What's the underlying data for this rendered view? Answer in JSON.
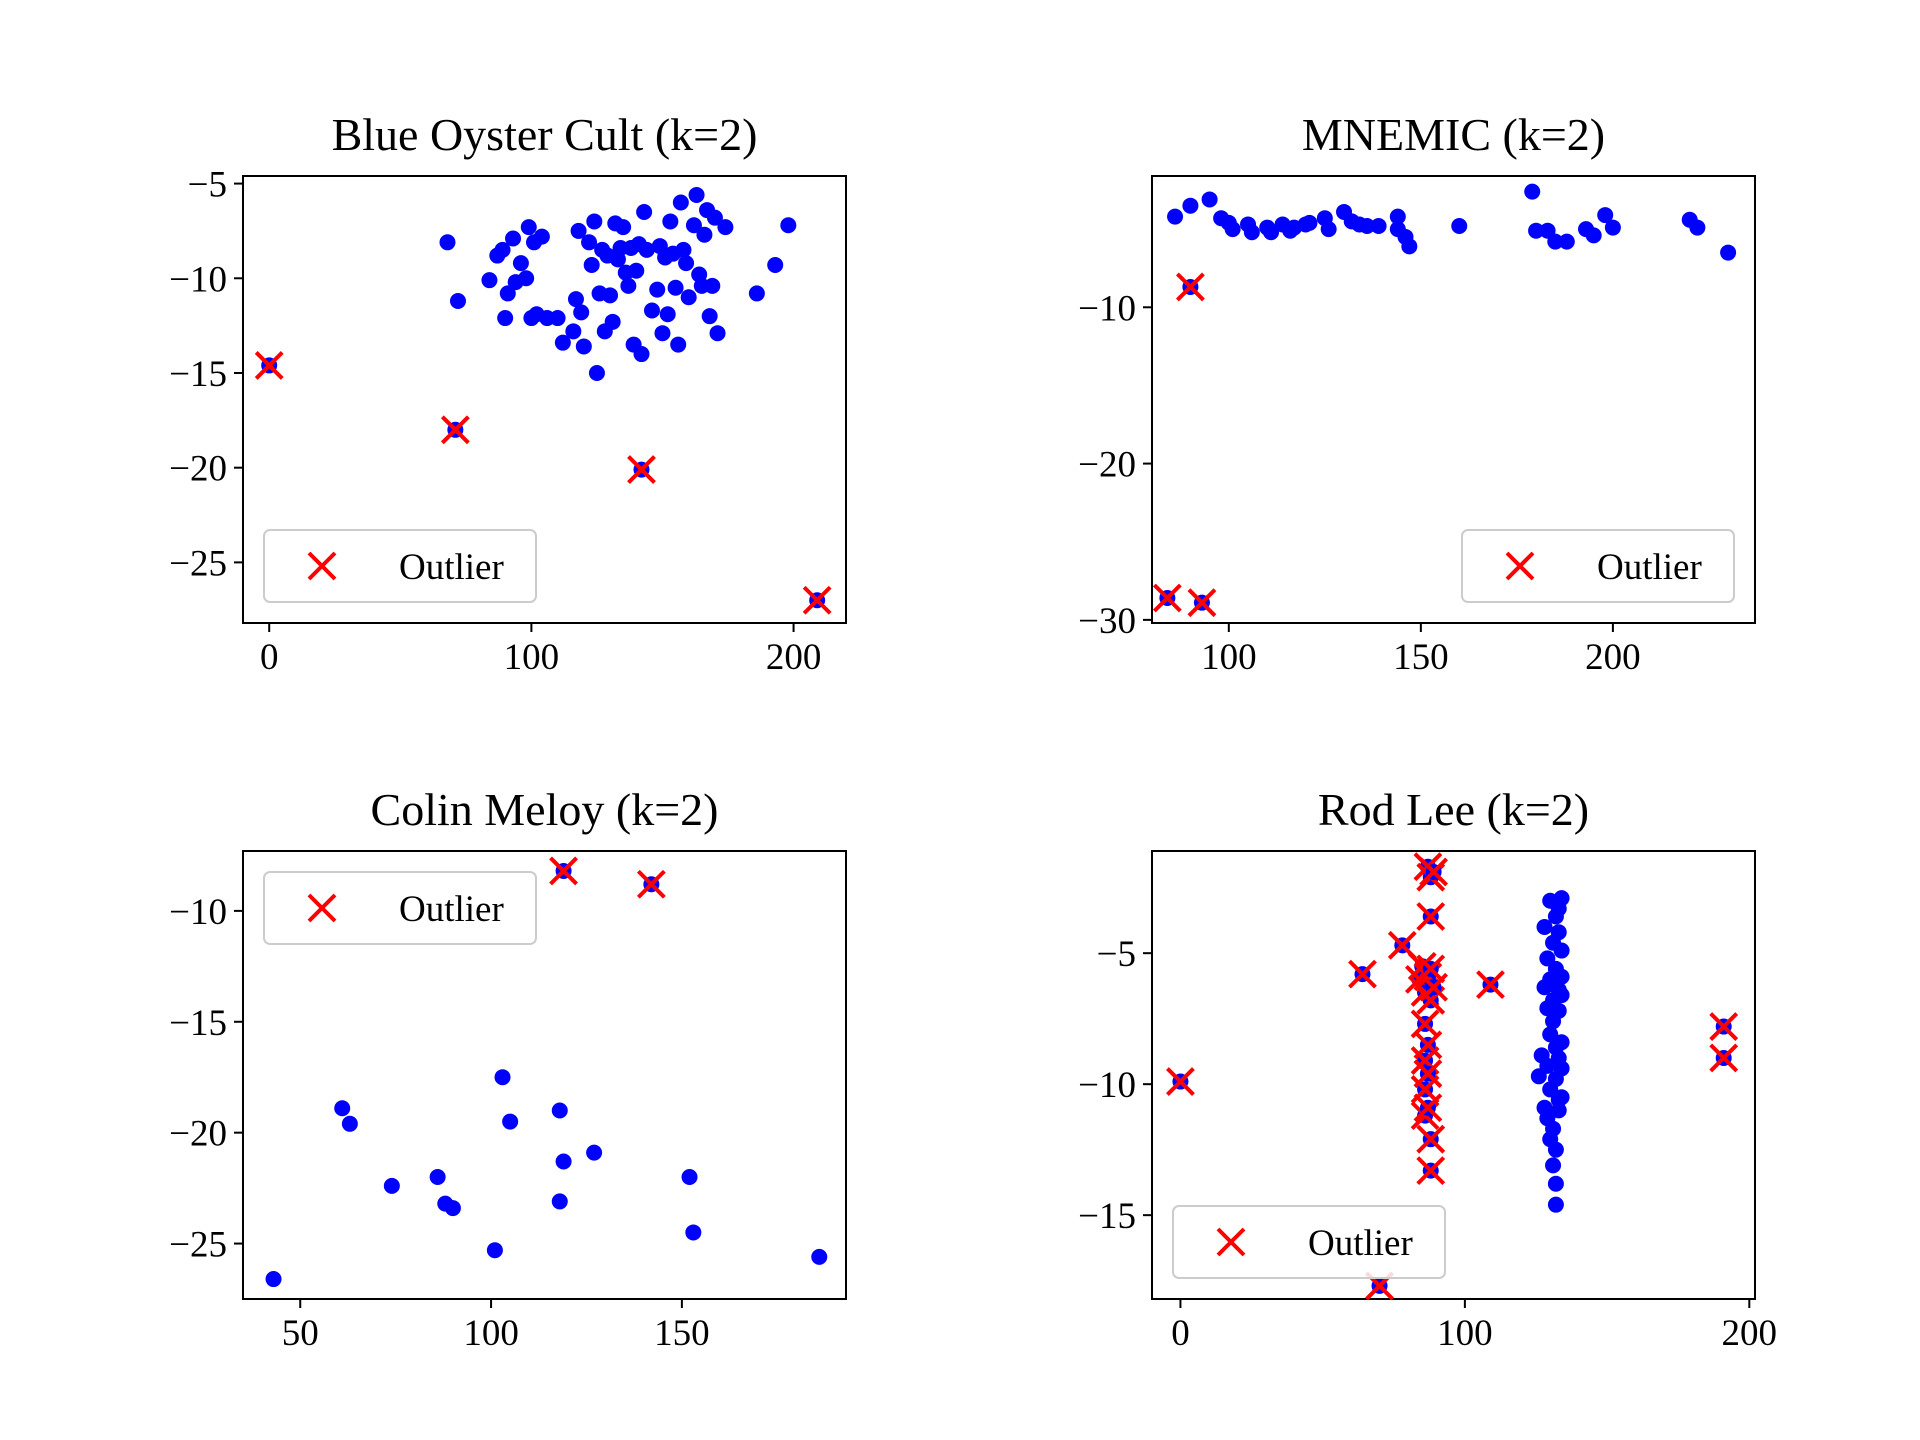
{
  "colors": {
    "inlier": "#0000ff",
    "outlier": "#ff0000",
    "axes": "#000000",
    "legend_border": "#cccccc"
  },
  "chart_data": [
    {
      "type": "scatter",
      "title": "Blue Oyster Cult (k=2)",
      "xlim": [
        -10,
        220
      ],
      "ylim": [
        -28.2,
        -4.6
      ],
      "xticks": [
        0,
        100,
        200
      ],
      "yticks": [
        -5,
        -10,
        -15,
        -20,
        -25
      ],
      "legend": {
        "label": "Outlier",
        "position": "lower-left"
      },
      "inliers": [
        [
          68,
          -8.1
        ],
        [
          72,
          -11.2
        ],
        [
          84,
          -10.1
        ],
        [
          87,
          -8.8
        ],
        [
          89,
          -8.5
        ],
        [
          90,
          -12.1
        ],
        [
          91,
          -10.8
        ],
        [
          93,
          -7.9
        ],
        [
          94,
          -10.2
        ],
        [
          96,
          -9.2
        ],
        [
          98,
          -10.0
        ],
        [
          99,
          -7.3
        ],
        [
          100,
          -12.1
        ],
        [
          101,
          -8.1
        ],
        [
          102,
          -11.9
        ],
        [
          104,
          -7.8
        ],
        [
          106,
          -12.1
        ],
        [
          110,
          -12.1
        ],
        [
          112,
          -13.4
        ],
        [
          116,
          -12.8
        ],
        [
          117,
          -11.1
        ],
        [
          118,
          -7.5
        ],
        [
          119,
          -11.8
        ],
        [
          120,
          -13.6
        ],
        [
          122,
          -8.1
        ],
        [
          123,
          -9.3
        ],
        [
          124,
          -7.0
        ],
        [
          125,
          -15.0
        ],
        [
          126,
          -10.8
        ],
        [
          127,
          -8.5
        ],
        [
          128,
          -12.8
        ],
        [
          129,
          -8.8
        ],
        [
          130,
          -10.9
        ],
        [
          131,
          -12.3
        ],
        [
          132,
          -7.1
        ],
        [
          133,
          -9.0
        ],
        [
          134,
          -8.4
        ],
        [
          135,
          -7.3
        ],
        [
          136,
          -9.7
        ],
        [
          137,
          -10.4
        ],
        [
          138,
          -8.4
        ],
        [
          139,
          -13.5
        ],
        [
          140,
          -9.6
        ],
        [
          141,
          -8.2
        ],
        [
          142,
          -14.0
        ],
        [
          143,
          -6.5
        ],
        [
          144,
          -8.5
        ],
        [
          146,
          -11.7
        ],
        [
          148,
          -10.6
        ],
        [
          149,
          -8.3
        ],
        [
          150,
          -12.9
        ],
        [
          151,
          -8.9
        ],
        [
          152,
          -11.9
        ],
        [
          153,
          -7.0
        ],
        [
          154,
          -8.7
        ],
        [
          155,
          -10.5
        ],
        [
          156,
          -13.5
        ],
        [
          157,
          -6.0
        ],
        [
          158,
          -8.5
        ],
        [
          159,
          -9.2
        ],
        [
          160,
          -11.0
        ],
        [
          162,
          -7.2
        ],
        [
          163,
          -5.6
        ],
        [
          164,
          -9.8
        ],
        [
          165,
          -10.4
        ],
        [
          166,
          -7.7
        ],
        [
          167,
          -6.4
        ],
        [
          168,
          -12.0
        ],
        [
          169,
          -10.4
        ],
        [
          170,
          -6.8
        ],
        [
          171,
          -12.9
        ],
        [
          174,
          -7.3
        ],
        [
          186,
          -10.8
        ],
        [
          193,
          -9.3
        ],
        [
          198,
          -7.2
        ]
      ],
      "outliers": [
        [
          0,
          -14.6
        ],
        [
          71,
          -18.0
        ],
        [
          142,
          -20.1
        ],
        [
          209,
          -27.0
        ]
      ]
    },
    {
      "type": "scatter",
      "title": "MNEMIC (k=2)",
      "xlim": [
        80,
        237
      ],
      "ylim": [
        -30.2,
        -1.6
      ],
      "xticks": [
        100,
        150,
        200
      ],
      "yticks": [
        -10,
        -20,
        -30
      ],
      "legend": {
        "label": "Outlier",
        "position": "lower-right"
      },
      "inliers": [
        [
          86,
          -4.2
        ],
        [
          90,
          -3.5
        ],
        [
          95,
          -3.1
        ],
        [
          98,
          -4.3
        ],
        [
          100,
          -4.6
        ],
        [
          101,
          -5.0
        ],
        [
          105,
          -4.7
        ],
        [
          106,
          -5.2
        ],
        [
          110,
          -4.9
        ],
        [
          111,
          -5.2
        ],
        [
          114,
          -4.7
        ],
        [
          116,
          -5.1
        ],
        [
          117,
          -4.9
        ],
        [
          120,
          -4.7
        ],
        [
          121,
          -4.6
        ],
        [
          125,
          -4.3
        ],
        [
          126,
          -5.0
        ],
        [
          130,
          -3.9
        ],
        [
          132,
          -4.5
        ],
        [
          134,
          -4.7
        ],
        [
          136,
          -4.8
        ],
        [
          139,
          -4.8
        ],
        [
          144,
          -4.2
        ],
        [
          144,
          -5.0
        ],
        [
          146,
          -5.5
        ],
        [
          147,
          -6.1
        ],
        [
          160,
          -4.8
        ],
        [
          179,
          -2.6
        ],
        [
          180,
          -5.1
        ],
        [
          183,
          -5.1
        ],
        [
          185,
          -5.8
        ],
        [
          188,
          -5.8
        ],
        [
          193,
          -5.0
        ],
        [
          195,
          -5.4
        ],
        [
          198,
          -4.1
        ],
        [
          200,
          -4.9
        ],
        [
          220,
          -4.4
        ],
        [
          222,
          -4.9
        ],
        [
          230,
          -6.5
        ]
      ],
      "outliers": [
        [
          84,
          -28.6
        ],
        [
          90,
          -8.7
        ],
        [
          93,
          -28.9
        ]
      ]
    },
    {
      "type": "scatter",
      "title": "Colin Meloy (k=2)",
      "xlim": [
        35,
        193
      ],
      "ylim": [
        -27.5,
        -7.3
      ],
      "xticks": [
        50,
        100,
        150
      ],
      "yticks": [
        -10,
        -15,
        -20,
        -25
      ],
      "legend": {
        "label": "Outlier",
        "position": "upper-left"
      },
      "inliers": [
        [
          43,
          -26.6
        ],
        [
          61,
          -18.9
        ],
        [
          63,
          -19.6
        ],
        [
          74,
          -22.4
        ],
        [
          86,
          -22.0
        ],
        [
          88,
          -23.2
        ],
        [
          90,
          -23.4
        ],
        [
          101,
          -25.3
        ],
        [
          103,
          -17.5
        ],
        [
          105,
          -19.5
        ],
        [
          118,
          -19.0
        ],
        [
          118,
          -23.1
        ],
        [
          119,
          -21.3
        ],
        [
          127,
          -20.9
        ],
        [
          152,
          -22.0
        ],
        [
          153,
          -24.5
        ],
        [
          186,
          -25.6
        ]
      ],
      "outliers": [
        [
          119,
          -8.2
        ],
        [
          142,
          -8.8
        ]
      ]
    },
    {
      "type": "scatter",
      "title": "Rod Lee (k=2)",
      "xlim": [
        -10,
        202
      ],
      "ylim": [
        -18.2,
        -1.1
      ],
      "xticks": [
        0,
        100,
        200
      ],
      "yticks": [
        -5,
        -10,
        -15
      ],
      "legend": {
        "label": "Outlier",
        "position": "lower-left"
      },
      "inliers": [
        [
          126,
          -9.7
        ],
        [
          127,
          -8.9
        ],
        [
          128,
          -6.3
        ],
        [
          128,
          -10.9
        ],
        [
          128,
          -4.0
        ],
        [
          129,
          -5.2
        ],
        [
          129,
          -7.1
        ],
        [
          129,
          -9.3
        ],
        [
          129,
          -11.3
        ],
        [
          130,
          -3.0
        ],
        [
          130,
          -6.0
        ],
        [
          130,
          -8.1
        ],
        [
          130,
          -10.2
        ],
        [
          130,
          -12.1
        ],
        [
          131,
          -4.6
        ],
        [
          131,
          -6.8
        ],
        [
          131,
          -7.6
        ],
        [
          131,
          -13.1
        ],
        [
          131,
          -11.7
        ],
        [
          132,
          -3.6
        ],
        [
          132,
          -5.6
        ],
        [
          132,
          -8.6
        ],
        [
          132,
          -9.8
        ],
        [
          132,
          -12.5
        ],
        [
          132,
          -14.6
        ],
        [
          132,
          -13.8
        ],
        [
          133,
          -4.2
        ],
        [
          133,
          -6.4
        ],
        [
          133,
          -7.2
        ],
        [
          133,
          -9.0
        ],
        [
          133,
          -10.6
        ],
        [
          133,
          -11.0
        ],
        [
          133,
          -3.3
        ],
        [
          134,
          -4.9
        ],
        [
          134,
          -5.9
        ],
        [
          134,
          -6.6
        ],
        [
          134,
          -8.4
        ],
        [
          134,
          -9.4
        ],
        [
          134,
          -10.5
        ],
        [
          134,
          -2.9
        ]
      ],
      "outliers": [
        [
          0,
          -9.9
        ],
        [
          64,
          -5.8
        ],
        [
          78,
          -4.7
        ],
        [
          84,
          -6.0
        ],
        [
          85,
          -5.5
        ],
        [
          86,
          -6.5
        ],
        [
          86,
          -7.7
        ],
        [
          86,
          -9.1
        ],
        [
          86,
          -10.2
        ],
        [
          86,
          -11.2
        ],
        [
          87,
          -1.7
        ],
        [
          87,
          -5.9
        ],
        [
          87,
          -8.5
        ],
        [
          87,
          -9.6
        ],
        [
          87,
          -10.9
        ],
        [
          88,
          -2.1
        ],
        [
          88,
          -3.6
        ],
        [
          88,
          -5.6
        ],
        [
          88,
          -6.8
        ],
        [
          88,
          -12.1
        ],
        [
          88,
          -13.3
        ],
        [
          89,
          -1.9
        ],
        [
          89,
          -6.3
        ],
        [
          109,
          -6.2
        ],
        [
          191,
          -7.8
        ],
        [
          191,
          -9.0
        ],
        [
          70,
          -17.7
        ]
      ]
    }
  ]
}
